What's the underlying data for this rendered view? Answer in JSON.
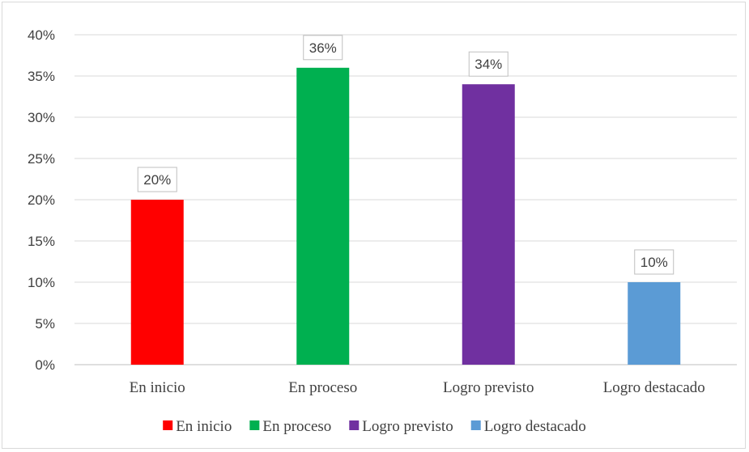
{
  "chart_data": {
    "type": "bar",
    "categories": [
      "En inicio",
      "En proceso",
      "Logro previsto",
      "Logro destacado"
    ],
    "values": [
      20,
      36,
      34,
      10
    ],
    "data_labels": [
      "20%",
      "36%",
      "34%",
      "10%"
    ],
    "colors": [
      "#ff0000",
      "#00b050",
      "#7030a0",
      "#5b9bd5"
    ],
    "ylim": [
      0,
      40
    ],
    "yticks": [
      0,
      5,
      10,
      15,
      20,
      25,
      30,
      35,
      40
    ],
    "ytick_labels": [
      "0%",
      "5%",
      "10%",
      "15%",
      "20%",
      "25%",
      "30%",
      "35%",
      "40%"
    ],
    "grid": true,
    "legend": {
      "position": "bottom",
      "entries": [
        "En inicio",
        "En proceso",
        "Logro previsto",
        "Logro destacado"
      ]
    }
  }
}
